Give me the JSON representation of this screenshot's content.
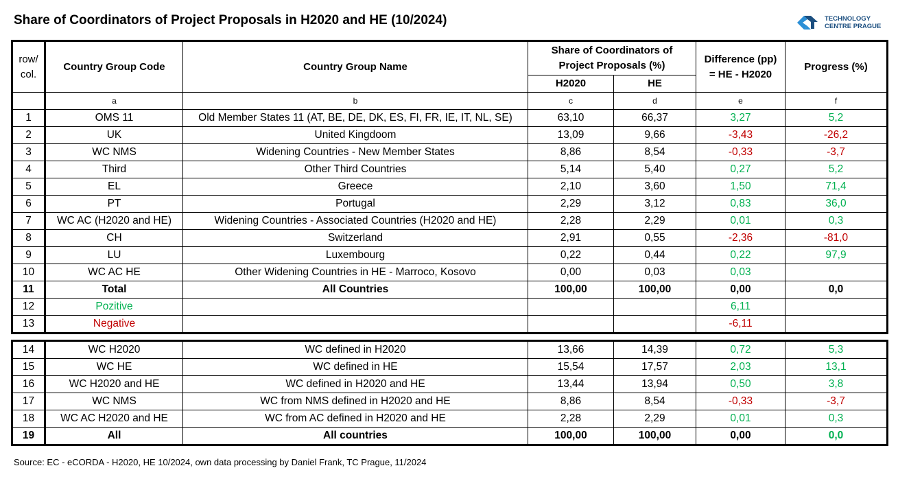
{
  "title": "Share of Coordinators of Project Proposals in H2020 and HE (10/2024)",
  "logo": {
    "line1": "TECHNOLOGY",
    "line2": "CENTRE PRAGUE",
    "color": "#1e5a96"
  },
  "header": {
    "rowcol1": "row/",
    "rowcol2": "col.",
    "code": "Country Group Code",
    "name": "Country Group Name",
    "share1": "Share of Coordinators of",
    "share2": "Project Proposals (%)",
    "h2020": "H2020",
    "he": "HE",
    "diff1": "Difference (pp)",
    "diff2": "= HE - H2020",
    "progress": "Progress (%)"
  },
  "letters": [
    "a",
    "b",
    "c",
    "d",
    "e",
    "f"
  ],
  "colors": {
    "green": "#00b050",
    "red": "#c00000"
  },
  "rows": [
    {
      "n": "1",
      "code": "OMS 11",
      "name": "Old Member States 11 (AT, BE, DE, DK, ES, FI, FR, IE, IT, NL, SE)",
      "c": "63,10",
      "d": "66,37",
      "e": "3,27",
      "f": "5,2",
      "ec": "g",
      "fc": "g"
    },
    {
      "n": "2",
      "code": "UK",
      "name": "United Kingdoom",
      "c": "13,09",
      "d": "9,66",
      "e": "-3,43",
      "f": "-26,2",
      "ec": "r",
      "fc": "r"
    },
    {
      "n": "3",
      "code": "WC NMS",
      "name": "Widening Countries - New Member States",
      "c": "8,86",
      "d": "8,54",
      "e": "-0,33",
      "f": "-3,7",
      "ec": "r",
      "fc": "r"
    },
    {
      "n": "4",
      "code": "Third",
      "name": "Other Third Countries",
      "c": "5,14",
      "d": "5,40",
      "e": "0,27",
      "f": "5,2",
      "ec": "g",
      "fc": "g"
    },
    {
      "n": "5",
      "code": "EL",
      "name": "Greece",
      "c": "2,10",
      "d": "3,60",
      "e": "1,50",
      "f": "71,4",
      "ec": "g",
      "fc": "g"
    },
    {
      "n": "6",
      "code": "PT",
      "name": "Portugal",
      "c": "2,29",
      "d": "3,12",
      "e": "0,83",
      "f": "36,0",
      "ec": "g",
      "fc": "g"
    },
    {
      "n": "7",
      "code": "WC AC (H2020 and HE)",
      "name": "Widening Countries - Associated Countries (H2020 and HE)",
      "c": "2,28",
      "d": "2,29",
      "e": "0,01",
      "f": "0,3",
      "ec": "g",
      "fc": "g"
    },
    {
      "n": "8",
      "code": "CH",
      "name": "Switzerland",
      "c": "2,91",
      "d": "0,55",
      "e": "-2,36",
      "f": "-81,0",
      "ec": "r",
      "fc": "r"
    },
    {
      "n": "9",
      "code": "LU",
      "name": "Luxembourg",
      "c": "0,22",
      "d": "0,44",
      "e": "0,22",
      "f": "97,9",
      "ec": "g",
      "fc": "g"
    },
    {
      "n": "10",
      "code": "WC AC HE",
      "name": "Other Widening Countries in HE  - Marroco, Kosovo",
      "c": "0,00",
      "d": "0,03",
      "e": "0,03",
      "f": "",
      "ec": "g",
      "fc": "g"
    },
    {
      "n": "11",
      "code": "Total",
      "name": "All Countries",
      "c": "100,00",
      "d": "100,00",
      "e": "0,00",
      "f": "0,0",
      "ec": "k",
      "fc": "k",
      "bold": true
    },
    {
      "n": "12",
      "code": "Pozitive",
      "name": "",
      "c": "",
      "d": "",
      "e": "6,11",
      "f": "",
      "ec": "g",
      "fc": "g",
      "lc": "g"
    },
    {
      "n": "13",
      "code": "Negative",
      "name": "",
      "c": "",
      "d": "",
      "e": "-6,11",
      "f": "",
      "ec": "r",
      "fc": "r",
      "lc": "r"
    }
  ],
  "rows2": [
    {
      "n": "14",
      "code": "WC H2020",
      "name": "WC  defined in H2020",
      "c": "13,66",
      "d": "14,39",
      "e": "0,72",
      "f": "5,3",
      "ec": "g",
      "fc": "g"
    },
    {
      "n": "15",
      "code": "WC HE",
      "name": "WC defined in HE",
      "c": "15,54",
      "d": "17,57",
      "e": "2,03",
      "f": "13,1",
      "ec": "g",
      "fc": "g"
    },
    {
      "n": "16",
      "code": "WC H2020 and HE",
      "name": "WC defined in H2020 and HE",
      "c": "13,44",
      "d": "13,94",
      "e": "0,50",
      "f": "3,8",
      "ec": "g",
      "fc": "g"
    },
    {
      "n": "17",
      "code": "WC NMS",
      "name": "WC from NMS defined in H2020 and HE",
      "c": "8,86",
      "d": "8,54",
      "e": "-0,33",
      "f": "-3,7",
      "ec": "r",
      "fc": "r"
    },
    {
      "n": "18",
      "code": "WC AC H2020 and HE",
      "name": "WC  from AC defined in H2020 and HE",
      "c": "2,28",
      "d": "2,29",
      "e": "0,01",
      "f": "0,3",
      "ec": "g",
      "fc": "g"
    },
    {
      "n": "19",
      "code": "All",
      "name": "All countries",
      "c": "100,00",
      "d": "100,00",
      "e": "0,00",
      "f": "0,0",
      "ec": "k",
      "fc": "g",
      "bold": true
    }
  ],
  "source": "Source: EC - eCORDA - H2020, HE 10/2024, own data processing by Daniel  Frank, TC Prague, 11/2024"
}
